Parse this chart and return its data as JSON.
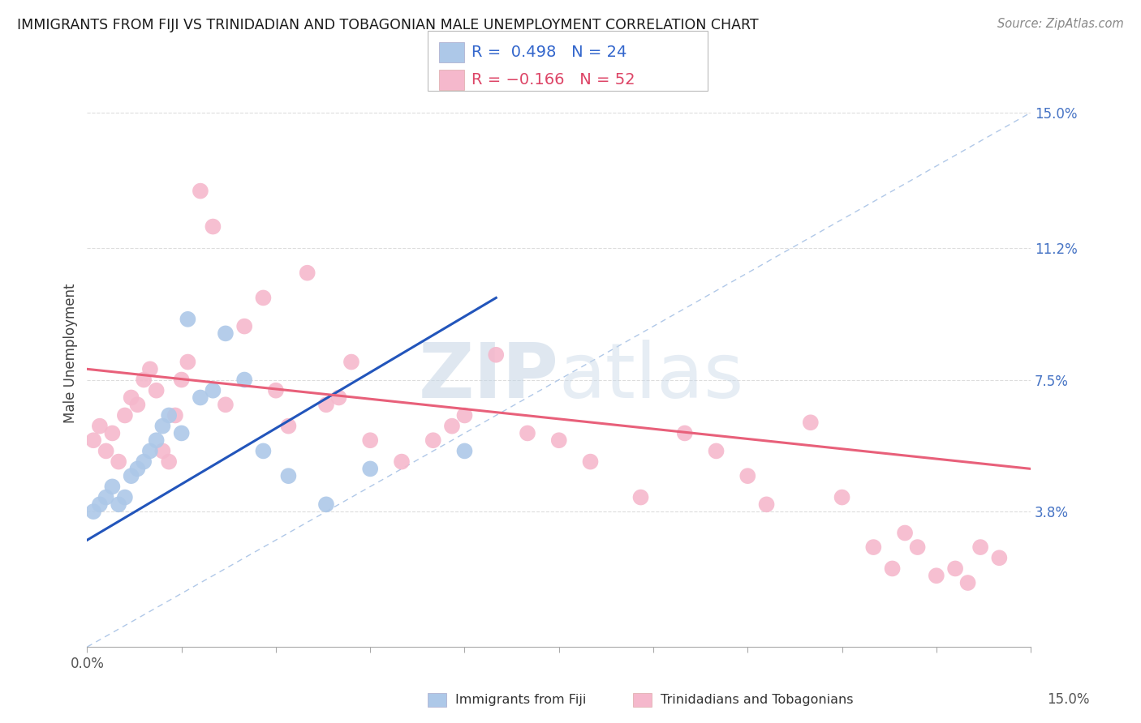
{
  "title": "IMMIGRANTS FROM FIJI VS TRINIDADIAN AND TOBAGONIAN MALE UNEMPLOYMENT CORRELATION CHART",
  "source": "Source: ZipAtlas.com",
  "ylabel": "Male Unemployment",
  "ytick_labels": [
    "15.0%",
    "11.2%",
    "7.5%",
    "3.8%"
  ],
  "ytick_values": [
    0.15,
    0.112,
    0.075,
    0.038
  ],
  "xlim": [
    0.0,
    0.15
  ],
  "ylim": [
    0.0,
    0.165
  ],
  "fiji_color": "#adc8e8",
  "tnt_color": "#f5b8cc",
  "fiji_line_color": "#2255bb",
  "tnt_line_color": "#e8607a",
  "diagonal_color": "#b0c8e8",
  "background_color": "#ffffff",
  "grid_color": "#dddddd",
  "fiji_scatter_x": [
    0.001,
    0.002,
    0.003,
    0.004,
    0.005,
    0.006,
    0.007,
    0.008,
    0.009,
    0.01,
    0.011,
    0.012,
    0.013,
    0.015,
    0.016,
    0.018,
    0.02,
    0.022,
    0.025,
    0.028,
    0.032,
    0.038,
    0.045,
    0.06
  ],
  "fiji_scatter_y": [
    0.038,
    0.04,
    0.042,
    0.045,
    0.04,
    0.042,
    0.048,
    0.05,
    0.052,
    0.055,
    0.058,
    0.062,
    0.065,
    0.06,
    0.092,
    0.07,
    0.072,
    0.088,
    0.075,
    0.055,
    0.048,
    0.04,
    0.05,
    0.055
  ],
  "tnt_scatter_x": [
    0.001,
    0.002,
    0.003,
    0.004,
    0.005,
    0.006,
    0.007,
    0.008,
    0.009,
    0.01,
    0.011,
    0.012,
    0.013,
    0.014,
    0.015,
    0.016,
    0.018,
    0.02,
    0.022,
    0.025,
    0.028,
    0.03,
    0.032,
    0.035,
    0.038,
    0.04,
    0.042,
    0.045,
    0.05,
    0.055,
    0.058,
    0.06,
    0.065,
    0.07,
    0.075,
    0.08,
    0.088,
    0.095,
    0.1,
    0.105,
    0.108,
    0.115,
    0.12,
    0.125,
    0.128,
    0.13,
    0.132,
    0.135,
    0.138,
    0.14,
    0.142,
    0.145
  ],
  "tnt_scatter_y": [
    0.058,
    0.062,
    0.055,
    0.06,
    0.052,
    0.065,
    0.07,
    0.068,
    0.075,
    0.078,
    0.072,
    0.055,
    0.052,
    0.065,
    0.075,
    0.08,
    0.128,
    0.118,
    0.068,
    0.09,
    0.098,
    0.072,
    0.062,
    0.105,
    0.068,
    0.07,
    0.08,
    0.058,
    0.052,
    0.058,
    0.062,
    0.065,
    0.082,
    0.06,
    0.058,
    0.052,
    0.042,
    0.06,
    0.055,
    0.048,
    0.04,
    0.063,
    0.042,
    0.028,
    0.022,
    0.032,
    0.028,
    0.02,
    0.022,
    0.018,
    0.028,
    0.025
  ],
  "fiji_line_x0": 0.0,
  "fiji_line_x1": 0.065,
  "fiji_line_y0": 0.03,
  "fiji_line_y1": 0.098,
  "tnt_line_x0": 0.0,
  "tnt_line_x1": 0.15,
  "tnt_line_y0": 0.078,
  "tnt_line_y1": 0.05,
  "watermark_zip": "ZIP",
  "watermark_atlas": "atlas",
  "legend_label1": "R =  0.498   N = 24",
  "legend_label2": "R = −0.166   N = 52",
  "bottom_label1": "Immigrants from Fiji",
  "bottom_label2": "Trinidadians and Tobagonians"
}
